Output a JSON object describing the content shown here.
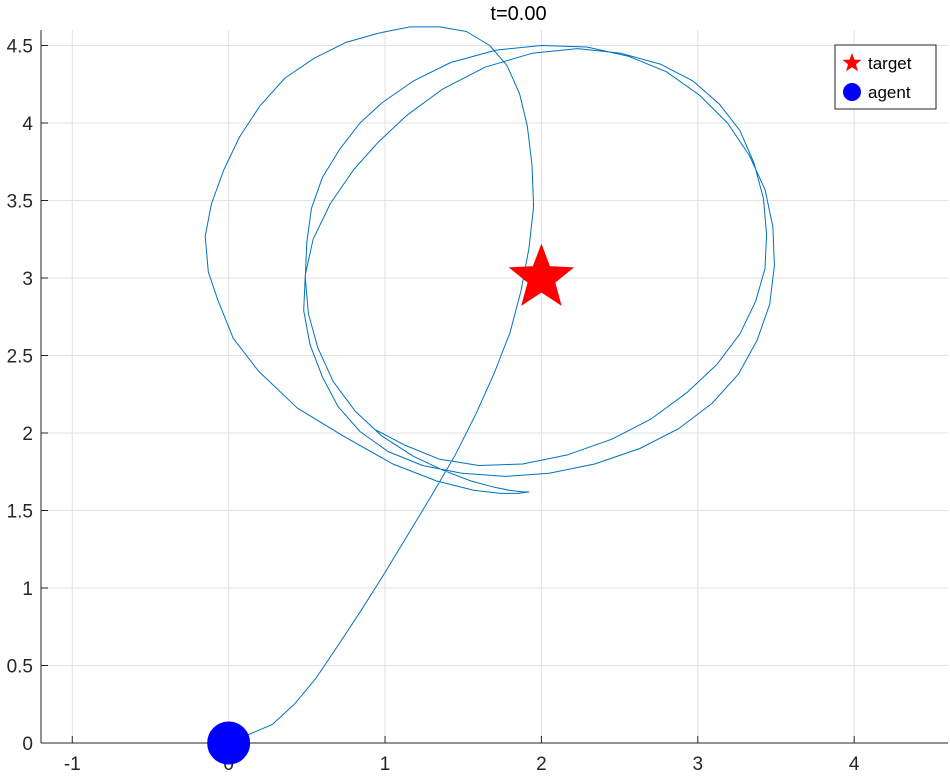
{
  "chart_data": {
    "type": "line",
    "title": "t=0.00",
    "xlabel": "",
    "ylabel": "",
    "xlim": [
      -1.2,
      4.6
    ],
    "ylim": [
      0,
      4.6
    ],
    "grid": true,
    "legend_position": "top-right",
    "x_ticks": [
      -1,
      0,
      1,
      2,
      3,
      4
    ],
    "x_tick_labels": [
      "-1",
      "0",
      "1",
      "2",
      "3",
      "4"
    ],
    "y_ticks": [
      0,
      0.5,
      1,
      1.5,
      2,
      2.5,
      3,
      3.5,
      4,
      4.5
    ],
    "y_tick_labels": [
      "0",
      "0.5",
      "1",
      "1.5",
      "2",
      "2.5",
      "3",
      "3.5",
      "4",
      "4.5"
    ],
    "series": [
      {
        "name": "",
        "kind": "trajectory",
        "color": "#0072BD",
        "x": [
          0.0,
          0.28,
          0.42,
          0.56,
          0.7,
          0.85,
          1.0,
          1.15,
          1.3,
          1.45,
          1.58,
          1.7,
          1.8,
          1.87,
          1.92,
          1.95,
          1.94,
          1.91,
          1.86,
          1.78,
          1.67,
          1.52,
          1.35,
          1.16,
          0.96,
          0.75,
          0.55,
          0.36,
          0.2,
          0.07,
          -0.03,
          -0.11,
          -0.15,
          -0.13,
          -0.07,
          0.03,
          0.19,
          0.44,
          0.75,
          1.05,
          1.33,
          1.57,
          1.74,
          1.85,
          1.92,
          1.92,
          1.88,
          1.8,
          1.7,
          1.55,
          1.37,
          1.18,
          0.98,
          0.81,
          0.67,
          0.57,
          0.51,
          0.49,
          0.5,
          0.53,
          0.6,
          0.71,
          0.84,
          0.98,
          1.18,
          1.42,
          1.71,
          2.0,
          2.29,
          2.56,
          2.8,
          3.01,
          3.19,
          3.33,
          3.43,
          3.48,
          3.49,
          3.46,
          3.38,
          3.26,
          3.09,
          2.88,
          2.63,
          2.34,
          2.05,
          1.77,
          1.49,
          1.24,
          1.02,
          0.84,
          0.7,
          0.6,
          0.52,
          0.48,
          0.49,
          0.54,
          0.65,
          0.8,
          0.96,
          1.14,
          1.37,
          1.64,
          1.94,
          2.23,
          2.51,
          2.76,
          2.97,
          3.14,
          3.27,
          3.36,
          3.42,
          3.44,
          3.43,
          3.37,
          3.27,
          3.12,
          2.93,
          2.7,
          2.45,
          2.17,
          1.88,
          1.6,
          1.35,
          1.13,
          0.94
        ],
        "y": [
          0.0,
          0.12,
          0.25,
          0.42,
          0.63,
          0.86,
          1.1,
          1.35,
          1.6,
          1.86,
          2.12,
          2.39,
          2.65,
          2.92,
          3.19,
          3.46,
          3.73,
          3.98,
          4.19,
          4.37,
          4.5,
          4.59,
          4.62,
          4.62,
          4.58,
          4.52,
          4.42,
          4.29,
          4.11,
          3.91,
          3.7,
          3.48,
          3.27,
          3.04,
          2.86,
          2.61,
          2.4,
          2.16,
          1.97,
          1.8,
          1.69,
          1.63,
          1.61,
          1.61,
          1.62,
          1.62,
          1.62,
          1.63,
          1.65,
          1.69,
          1.76,
          1.85,
          1.98,
          2.14,
          2.33,
          2.55,
          2.77,
          3.0,
          3.23,
          3.45,
          3.65,
          3.83,
          4.0,
          4.13,
          4.27,
          4.39,
          4.47,
          4.5,
          4.49,
          4.43,
          4.33,
          4.18,
          4.0,
          3.79,
          3.57,
          3.33,
          3.08,
          2.83,
          2.6,
          2.38,
          2.19,
          2.03,
          1.9,
          1.8,
          1.74,
          1.72,
          1.74,
          1.79,
          1.88,
          2.01,
          2.17,
          2.36,
          2.57,
          2.79,
          3.02,
          3.25,
          3.48,
          3.7,
          3.88,
          4.05,
          4.22,
          4.36,
          4.45,
          4.48,
          4.45,
          4.38,
          4.27,
          4.12,
          3.95,
          3.74,
          3.51,
          3.28,
          3.06,
          2.85,
          2.64,
          2.44,
          2.26,
          2.09,
          1.96,
          1.86,
          1.8,
          1.79,
          1.83,
          1.92,
          2.02
        ]
      },
      {
        "name": "target",
        "kind": "marker",
        "marker": "star",
        "color": "#FF0000",
        "x": [
          2.0
        ],
        "y": [
          3.0
        ]
      },
      {
        "name": "agent",
        "kind": "marker",
        "marker": "circle",
        "color": "#0000FF",
        "x": [
          0.0
        ],
        "y": [
          0.0
        ]
      }
    ]
  }
}
